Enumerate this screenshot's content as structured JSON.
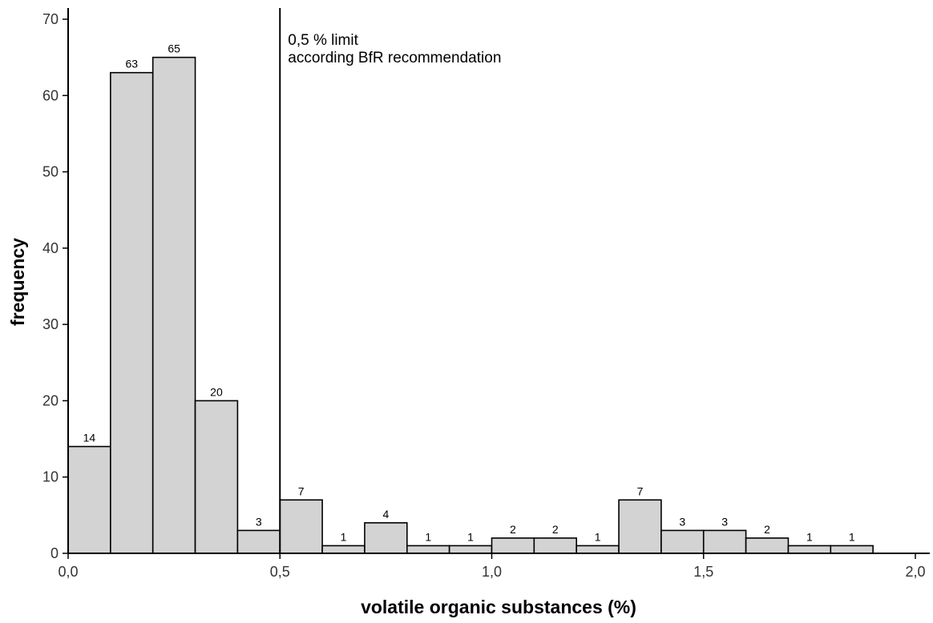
{
  "chart_data": {
    "type": "bar",
    "title": "",
    "xlabel": "volatile organic substances (%)",
    "ylabel": "frequency",
    "xlim": [
      0,
      2.1
    ],
    "ylim": [
      0,
      70
    ],
    "bin_width": 0.1,
    "bins": [
      {
        "start": 0.0,
        "end": 0.1,
        "value": 14
      },
      {
        "start": 0.1,
        "end": 0.2,
        "value": 63
      },
      {
        "start": 0.2,
        "end": 0.3,
        "value": 65
      },
      {
        "start": 0.3,
        "end": 0.4,
        "value": 20
      },
      {
        "start": 0.4,
        "end": 0.5,
        "value": 3
      },
      {
        "start": 0.5,
        "end": 0.6,
        "value": 7
      },
      {
        "start": 0.6,
        "end": 0.7,
        "value": 1
      },
      {
        "start": 0.7,
        "end": 0.8,
        "value": 4
      },
      {
        "start": 0.8,
        "end": 0.9,
        "value": 1
      },
      {
        "start": 0.9,
        "end": 1.0,
        "value": 1
      },
      {
        "start": 1.0,
        "end": 1.1,
        "value": 2
      },
      {
        "start": 1.1,
        "end": 1.2,
        "value": 2
      },
      {
        "start": 1.2,
        "end": 1.3,
        "value": 1
      },
      {
        "start": 1.3,
        "end": 1.4,
        "value": 7
      },
      {
        "start": 1.4,
        "end": 1.5,
        "value": 3
      },
      {
        "start": 1.5,
        "end": 1.6,
        "value": 3
      },
      {
        "start": 1.6,
        "end": 1.7,
        "value": 2
      },
      {
        "start": 1.7,
        "end": 1.8,
        "value": 1
      },
      {
        "start": 1.8,
        "end": 1.9,
        "value": 1
      }
    ],
    "x_ticks": [
      {
        "value": 0.0,
        "label": "0,0"
      },
      {
        "value": 0.5,
        "label": "0,5"
      },
      {
        "value": 1.0,
        "label": "1,0"
      },
      {
        "value": 1.5,
        "label": "1,5"
      },
      {
        "value": 2.0,
        "label": "2,0"
      }
    ],
    "y_ticks": [
      {
        "value": 0,
        "label": "0"
      },
      {
        "value": 10,
        "label": "10"
      },
      {
        "value": 20,
        "label": "20"
      },
      {
        "value": 30,
        "label": "30"
      },
      {
        "value": 40,
        "label": "40"
      },
      {
        "value": 50,
        "label": "50"
      },
      {
        "value": 60,
        "label": "60"
      },
      {
        "value": 70,
        "label": "70"
      }
    ],
    "reference_line": {
      "x": 0.5,
      "label_lines": [
        "0,5 % limit",
        "according BfR recommendation"
      ]
    },
    "grid": false,
    "legend": "none"
  }
}
